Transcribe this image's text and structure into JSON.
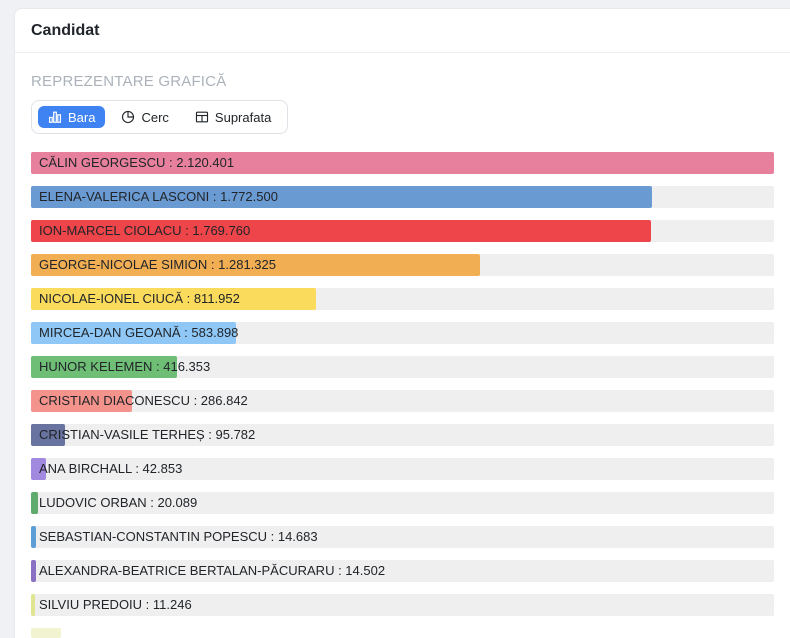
{
  "card": {
    "title": "Candidat"
  },
  "section": {
    "label": "REPREZENTARE GRAFICĂ",
    "active_color": "#3f82f2",
    "tabs": [
      {
        "label": "Bara",
        "icon": "bar-chart-icon",
        "active": true
      },
      {
        "label": "Cerc",
        "icon": "pie-chart-icon",
        "active": false
      },
      {
        "label": "Suprafata",
        "icon": "table-icon",
        "active": false
      }
    ]
  },
  "chart_data": {
    "type": "bar",
    "orientation": "horizontal",
    "title": "Candidat",
    "value_separator": " : ",
    "max_value": 2120401,
    "track_color": "#efeff0",
    "bars": [
      {
        "label": "CĂLIN GEORGESCU",
        "value": 2120401,
        "display": "2.120.401",
        "color": "#e7809c"
      },
      {
        "label": "ELENA-VALERICA LASCONI",
        "value": 1772500,
        "display": "1.772.500",
        "color": "#6a9ad2"
      },
      {
        "label": "ION-MARCEL CIOLACU",
        "value": 1769760,
        "display": "1.769.760",
        "color": "#ed4549"
      },
      {
        "label": "GEORGE-NICOLAE SIMION",
        "value": 1281325,
        "display": "1.281.325",
        "color": "#f1ae53"
      },
      {
        "label": "NICOLAE-IONEL CIUCĂ",
        "value": 811952,
        "display": "811.952",
        "color": "#fbdb5b"
      },
      {
        "label": "MIRCEA-DAN GEOANĂ",
        "value": 583898,
        "display": "583.898",
        "color": "#8fc8f7"
      },
      {
        "label": "HUNOR KELEMEN",
        "value": 416353,
        "display": "416.353",
        "color": "#6fbe76"
      },
      {
        "label": "CRISTIAN DIACONESCU",
        "value": 286842,
        "display": "286.842",
        "color": "#f4938c"
      },
      {
        "label": "CRISTIAN-VASILE TERHEȘ",
        "value": 95782,
        "display": "95.782",
        "color": "#68739f"
      },
      {
        "label": "ANA BIRCHALL",
        "value": 42853,
        "display": "42.853",
        "color": "#a189e0"
      },
      {
        "label": "LUDOVIC ORBAN",
        "value": 20089,
        "display": "20.089",
        "color": "#5fab6c"
      },
      {
        "label": "SEBASTIAN-CONSTANTIN POPESCU",
        "value": 14683,
        "display": "14.683",
        "color": "#5c9ed6"
      },
      {
        "label": "ALEXANDRA-BEATRICE BERTALAN-PĂCURARU",
        "value": 14502,
        "display": "14.502",
        "color": "#8a70c2"
      },
      {
        "label": "SILVIU PREDOIU",
        "value": 11246,
        "display": "11.246",
        "color": "#dfe590"
      }
    ]
  }
}
